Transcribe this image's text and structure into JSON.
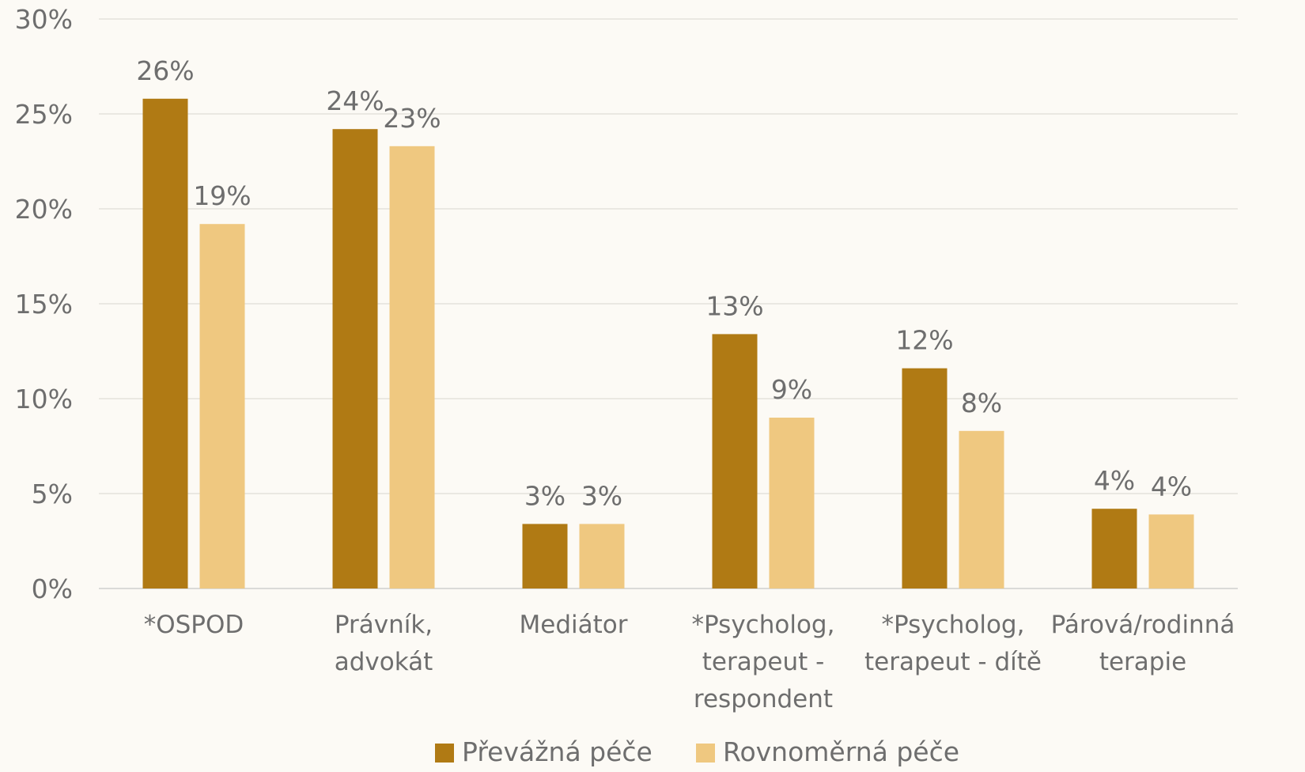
{
  "chart_data": {
    "type": "bar",
    "categories": [
      [
        "*OSPOD"
      ],
      [
        "Právník,",
        "advokát"
      ],
      [
        "Mediátor"
      ],
      [
        "*Psycholog,",
        "terapeut -",
        "respondent"
      ],
      [
        "*Psycholog,",
        "terapeut - dítě"
      ],
      [
        "Párová/rodinná",
        "terapie"
      ]
    ],
    "series": [
      {
        "name": "Převážná péče",
        "color": "#b07a14",
        "values": [
          25.8,
          24.2,
          3.4,
          13.4,
          11.6,
          4.2
        ],
        "labels": [
          "26%",
          "24%",
          "3%",
          "13%",
          "12%",
          "4%"
        ]
      },
      {
        "name": "Rovnoměrná péče",
        "color": "#efc880",
        "values": [
          19.2,
          23.3,
          3.4,
          9.0,
          8.3,
          3.9
        ],
        "labels": [
          "19%",
          "23%",
          "3%",
          "9%",
          "8%",
          "4%"
        ]
      }
    ],
    "ylim": [
      0,
      30
    ],
    "yticks": [
      "0%",
      "5%",
      "10%",
      "15%",
      "20%",
      "25%",
      "30%"
    ],
    "ytick_values": [
      0,
      5,
      10,
      15,
      20,
      25,
      30
    ],
    "grid": true,
    "legend_position": "bottom"
  }
}
